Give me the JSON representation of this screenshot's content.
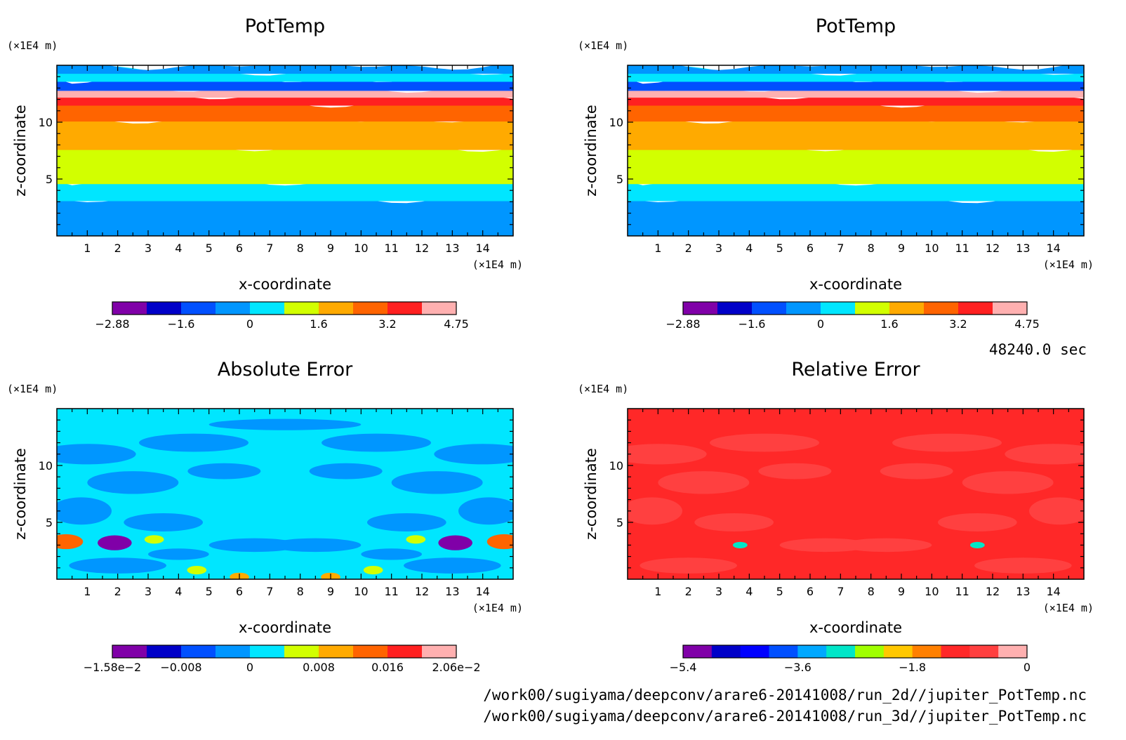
{
  "chart_data": [
    {
      "type": "heatmap",
      "title": "PotTemp",
      "xlabel": "x-coordinate",
      "ylabel": "z-coordinate",
      "x_unit": "(×1E4 m)",
      "z_unit": "(×1E4 m)",
      "xlim": [
        0,
        15
      ],
      "zlim": [
        0,
        15
      ],
      "x_ticks": [
        "1",
        "2",
        "3",
        "4",
        "5",
        "6",
        "7",
        "8",
        "9",
        "10",
        "11",
        "12",
        "13",
        "14"
      ],
      "z_ticks": [
        "5",
        "10"
      ],
      "colorbar": {
        "colors": [
          "#8000a8",
          "#0000c8",
          "#0050ff",
          "#0096ff",
          "#00e6ff",
          "#d2ff00",
          "#ffaa00",
          "#ff6400",
          "#ff2020",
          "#ffb0b0"
        ],
        "labels": [
          "−2.88",
          "−1.6",
          "0",
          "1.6",
          "3.2",
          "4.75"
        ]
      },
      "bands": [
        {
          "from": 0,
          "to": 3.3,
          "level": 3
        },
        {
          "from": 3.3,
          "to": 4.8,
          "level": 4
        },
        {
          "from": 4.8,
          "to": 7.8,
          "level": 5
        },
        {
          "from": 7.8,
          "to": 10.3,
          "level": 6
        },
        {
          "from": 10.3,
          "to": 11.7,
          "level": 7
        },
        {
          "from": 11.7,
          "to": 12.4,
          "level": 8
        },
        {
          "from": 12.4,
          "to": 13.0,
          "level": 9
        },
        {
          "from": 13.0,
          "to": 13.8,
          "level": 2
        },
        {
          "from": 13.8,
          "to": 14.5,
          "level": 4
        },
        {
          "from": 14.5,
          "to": 15,
          "level": 3
        }
      ]
    },
    {
      "type": "heatmap",
      "title": "PotTemp",
      "xlabel": "x-coordinate",
      "ylabel": "z-coordinate",
      "x_unit": "(×1E4 m)",
      "z_unit": "(×1E4 m)",
      "xlim": [
        0,
        15
      ],
      "zlim": [
        0,
        15
      ],
      "x_ticks": [
        "1",
        "2",
        "3",
        "4",
        "5",
        "6",
        "7",
        "8",
        "9",
        "10",
        "11",
        "12",
        "13",
        "14"
      ],
      "z_ticks": [
        "5",
        "10"
      ],
      "colorbar": {
        "colors": [
          "#8000a8",
          "#0000c8",
          "#0050ff",
          "#0096ff",
          "#00e6ff",
          "#d2ff00",
          "#ffaa00",
          "#ff6400",
          "#ff2020",
          "#ffb0b0"
        ],
        "labels": [
          "−2.88",
          "−1.6",
          "0",
          "1.6",
          "3.2",
          "4.75"
        ]
      },
      "bands": [
        {
          "from": 0,
          "to": 3.3,
          "level": 3
        },
        {
          "from": 3.3,
          "to": 4.8,
          "level": 4
        },
        {
          "from": 4.8,
          "to": 7.8,
          "level": 5
        },
        {
          "from": 7.8,
          "to": 10.3,
          "level": 6
        },
        {
          "from": 10.3,
          "to": 11.7,
          "level": 7
        },
        {
          "from": 11.7,
          "to": 12.4,
          "level": 8
        },
        {
          "from": 12.4,
          "to": 13.0,
          "level": 9
        },
        {
          "from": 13.0,
          "to": 13.8,
          "level": 2
        },
        {
          "from": 13.8,
          "to": 14.5,
          "level": 4
        },
        {
          "from": 14.5,
          "to": 15,
          "level": 3
        }
      ]
    },
    {
      "type": "heatmap",
      "title": "Absolute Error",
      "xlabel": "x-coordinate",
      "ylabel": "z-coordinate",
      "x_unit": "(×1E4 m)",
      "z_unit": "(×1E4 m)",
      "xlim": [
        0,
        15
      ],
      "zlim": [
        0,
        15
      ],
      "x_ticks": [
        "1",
        "2",
        "3",
        "4",
        "5",
        "6",
        "7",
        "8",
        "9",
        "10",
        "11",
        "12",
        "13",
        "14"
      ],
      "z_ticks": [
        "5",
        "10"
      ],
      "colorbar": {
        "colors": [
          "#8000a8",
          "#0000c8",
          "#0050ff",
          "#0096ff",
          "#00e6ff",
          "#d2ff00",
          "#ffaa00",
          "#ff6400",
          "#ff2020",
          "#ffb0b0"
        ],
        "labels": [
          "−1.58e−2",
          "−0.008",
          "0",
          "0.008",
          "0.016",
          "2.06e−2"
        ]
      },
      "background_level": 4,
      "patch_level": 3,
      "patches": [
        {
          "x": 1.0,
          "z": 11.0,
          "rx": 1.6,
          "rz": 0.9
        },
        {
          "x": 4.5,
          "z": 12.0,
          "rx": 1.8,
          "rz": 0.8
        },
        {
          "x": 10.5,
          "z": 12.0,
          "rx": 1.8,
          "rz": 0.8
        },
        {
          "x": 14.0,
          "z": 11.0,
          "rx": 1.6,
          "rz": 0.9
        },
        {
          "x": 2.5,
          "z": 8.5,
          "rx": 1.5,
          "rz": 1.0
        },
        {
          "x": 12.5,
          "z": 8.5,
          "rx": 1.5,
          "rz": 1.0
        },
        {
          "x": 5.5,
          "z": 9.5,
          "rx": 1.2,
          "rz": 0.7
        },
        {
          "x": 9.5,
          "z": 9.5,
          "rx": 1.2,
          "rz": 0.7
        },
        {
          "x": 0.8,
          "z": 6.0,
          "rx": 1.0,
          "rz": 1.2
        },
        {
          "x": 14.2,
          "z": 6.0,
          "rx": 1.0,
          "rz": 1.2
        },
        {
          "x": 3.5,
          "z": 5.0,
          "rx": 1.3,
          "rz": 0.8
        },
        {
          "x": 11.5,
          "z": 5.0,
          "rx": 1.3,
          "rz": 0.8
        },
        {
          "x": 6.5,
          "z": 3.0,
          "rx": 1.5,
          "rz": 0.6
        },
        {
          "x": 8.5,
          "z": 3.0,
          "rx": 1.5,
          "rz": 0.6
        },
        {
          "x": 2.0,
          "z": 1.2,
          "rx": 1.6,
          "rz": 0.7
        },
        {
          "x": 13.0,
          "z": 1.2,
          "rx": 1.6,
          "rz": 0.7
        },
        {
          "x": 7.5,
          "z": 13.6,
          "rx": 2.5,
          "rz": 0.5
        },
        {
          "x": 4.0,
          "z": 2.2,
          "rx": 1.0,
          "rz": 0.5
        },
        {
          "x": 11.0,
          "z": 2.2,
          "rx": 1.0,
          "rz": 0.5
        }
      ],
      "spots": [
        {
          "x": 0.3,
          "z": 3.3,
          "r": 0.35,
          "level": 7
        },
        {
          "x": 14.7,
          "z": 3.3,
          "r": 0.35,
          "level": 7
        },
        {
          "x": 1.9,
          "z": 3.2,
          "r": 0.35,
          "level": 0
        },
        {
          "x": 13.1,
          "z": 3.2,
          "r": 0.35,
          "level": 0
        },
        {
          "x": 3.2,
          "z": 3.5,
          "r": 0.2,
          "level": 5
        },
        {
          "x": 11.8,
          "z": 3.5,
          "r": 0.2,
          "level": 5
        },
        {
          "x": 4.6,
          "z": 0.8,
          "r": 0.2,
          "level": 5
        },
        {
          "x": 10.4,
          "z": 0.8,
          "r": 0.2,
          "level": 5
        },
        {
          "x": 6.0,
          "z": 0.2,
          "r": 0.2,
          "level": 6
        },
        {
          "x": 9.0,
          "z": 0.2,
          "r": 0.2,
          "level": 6
        }
      ]
    },
    {
      "type": "heatmap",
      "title": "Relative Error",
      "xlabel": "x-coordinate",
      "ylabel": "z-coordinate",
      "x_unit": "(×1E4 m)",
      "z_unit": "(×1E4 m)",
      "xlim": [
        0,
        15
      ],
      "zlim": [
        0,
        15
      ],
      "x_ticks": [
        "1",
        "2",
        "3",
        "4",
        "5",
        "6",
        "7",
        "8",
        "9",
        "10",
        "11",
        "12",
        "13",
        "14"
      ],
      "z_ticks": [
        "5",
        "10"
      ],
      "colorbar": {
        "colors": [
          "#8000a8",
          "#0000c8",
          "#0000ff",
          "#0050ff",
          "#00a8ff",
          "#00e6c8",
          "#a0ff00",
          "#ffc800",
          "#ff8000",
          "#ff2828",
          "#ff4040",
          "#ffb0b0"
        ],
        "labels": [
          "−5.4",
          "−3.6",
          "−1.8",
          "0"
        ]
      },
      "background_level": 9,
      "patch_level": 10,
      "patches": [
        {
          "x": 1.0,
          "z": 11.0,
          "rx": 1.6,
          "rz": 0.9
        },
        {
          "x": 4.5,
          "z": 12.0,
          "rx": 1.8,
          "rz": 0.8
        },
        {
          "x": 10.5,
          "z": 12.0,
          "rx": 1.8,
          "rz": 0.8
        },
        {
          "x": 14.0,
          "z": 11.0,
          "rx": 1.6,
          "rz": 0.9
        },
        {
          "x": 2.5,
          "z": 8.5,
          "rx": 1.5,
          "rz": 1.0
        },
        {
          "x": 12.5,
          "z": 8.5,
          "rx": 1.5,
          "rz": 1.0
        },
        {
          "x": 5.5,
          "z": 9.5,
          "rx": 1.2,
          "rz": 0.7
        },
        {
          "x": 9.5,
          "z": 9.5,
          "rx": 1.2,
          "rz": 0.7
        },
        {
          "x": 0.8,
          "z": 6.0,
          "rx": 1.0,
          "rz": 1.2
        },
        {
          "x": 14.2,
          "z": 6.0,
          "rx": 1.0,
          "rz": 1.2
        },
        {
          "x": 3.5,
          "z": 5.0,
          "rx": 1.3,
          "rz": 0.8
        },
        {
          "x": 11.5,
          "z": 5.0,
          "rx": 1.3,
          "rz": 0.8
        },
        {
          "x": 6.5,
          "z": 3.0,
          "rx": 1.5,
          "rz": 0.6
        },
        {
          "x": 8.5,
          "z": 3.0,
          "rx": 1.5,
          "rz": 0.6
        },
        {
          "x": 2.0,
          "z": 1.2,
          "rx": 1.6,
          "rz": 0.7
        },
        {
          "x": 13.0,
          "z": 1.2,
          "rx": 1.6,
          "rz": 0.7
        }
      ],
      "spots": [
        {
          "x": 3.7,
          "z": 3.0,
          "r": 0.15,
          "level": 5
        },
        {
          "x": 11.5,
          "z": 3.0,
          "r": 0.15,
          "level": 5
        }
      ]
    }
  ],
  "time_label": "48240.0 sec",
  "file_paths": [
    "/work00/sugiyama/deepconv/arare6-20141008/run_2d//jupiter_PotTemp.nc",
    "/work00/sugiyama/deepconv/arare6-20141008/run_3d//jupiter_PotTemp.nc"
  ]
}
